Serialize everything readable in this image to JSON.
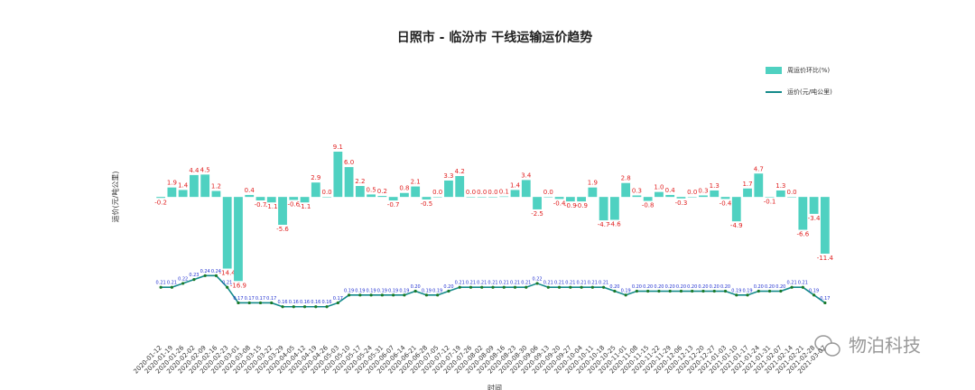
{
  "chart_data": {
    "type": "bar",
    "title": "日照市 - 临汾市 干线运输运价趋势",
    "y_label": "运价(元/吨公里)",
    "x_label": "时间",
    "watermark": "物泊科技",
    "legend": "top-right",
    "categories": [
      "2020-01-12",
      "2020-01-19",
      "2020-01-26",
      "2020-02-02",
      "2020-02-09",
      "2020-02-16",
      "2020-02-23",
      "2020-03-01",
      "2020-03-08",
      "2020-03-15",
      "2020-03-22",
      "2020-03-29",
      "2020-04-05",
      "2020-04-12",
      "2020-04-19",
      "2020-04-26",
      "2020-05-03",
      "2020-05-10",
      "2020-05-17",
      "2020-05-24",
      "2020-05-31",
      "2020-06-07",
      "2020-06-14",
      "2020-06-21",
      "2020-06-28",
      "2020-07-05",
      "2020-07-12",
      "2020-07-19",
      "2020-07-26",
      "2020-08-02",
      "2020-08-09",
      "2020-08-16",
      "2020-08-23",
      "2020-08-30",
      "2020-09-06",
      "2020-09-13",
      "2020-09-20",
      "2020-09-27",
      "2020-10-04",
      "2020-10-11",
      "2020-10-18",
      "2020-10-25",
      "2020-11-01",
      "2020-11-08",
      "2020-11-15",
      "2020-11-22",
      "2020-11-29",
      "2020-12-06",
      "2020-12-13",
      "2020-12-20",
      "2020-12-27",
      "2021-01-03",
      "2021-01-10",
      "2021-01-17",
      "2021-01-24",
      "2021-01-31",
      "2021-02-07",
      "2021-02-14",
      "2021-02-21",
      "2021-02-28",
      "2021-03-07"
    ],
    "ylim": [
      -33,
      28.7
    ],
    "y2lim": [
      0.02,
      0.81
    ],
    "series": [
      {
        "name": "周运价环比(%)",
        "type": "bar",
        "color": "#4fd1c1",
        "values": [
          -0.2,
          1.9,
          1.4,
          4.4,
          4.5,
          1.2,
          -14.4,
          -16.9,
          0.4,
          -0.7,
          -1.1,
          -5.6,
          -0.6,
          -1.1,
          2.9,
          0.0,
          9.1,
          6.0,
          2.2,
          0.5,
          0.2,
          -0.7,
          0.8,
          2.1,
          -0.5,
          0.0,
          3.3,
          4.2,
          0.0,
          0.0,
          0.0,
          0.1,
          1.4,
          3.4,
          -2.5,
          0.0,
          -0.4,
          -0.9,
          -0.9,
          1.9,
          -4.7,
          -4.6,
          2.8,
          0.3,
          -0.8,
          1.0,
          0.4,
          -0.3,
          0.0,
          0.3,
          1.3,
          -0.4,
          -4.9,
          1.7,
          4.7,
          -0.1,
          1.3,
          0.0,
          -6.6,
          -3.4,
          -11.4
        ],
        "value_labels": [
          "-0.2",
          "1.9",
          "1.4",
          "4.4",
          "4.5",
          "1.2",
          "-14.4",
          "-16.9",
          "0.4",
          "-0.7",
          "-1.1",
          "-5.6",
          "-0.6",
          "-1.1",
          "2.9",
          "0.0",
          "9.1",
          "6.0",
          "2.2",
          "0.5",
          "0.2",
          "-0.7",
          "0.8",
          "2.1",
          "-0.5",
          "0.0",
          "3.3",
          "4.2",
          "0.0",
          "0.0",
          "0.0",
          "0.1",
          "1.4",
          "3.4",
          "-2.5",
          "0.0",
          "-0.4",
          "-0.9",
          "-0.9",
          "1.9",
          "-4.7",
          "-4.6",
          "2.8",
          "0.3",
          "-0.8",
          "1.0",
          "0.4",
          "-0.3",
          "0.0",
          "0.3",
          "1.3",
          "-0.4",
          "-4.9",
          "1.7",
          "4.7",
          "-0.1",
          "1.3",
          "0.0",
          "-6.6",
          "-3.4",
          "-11.4"
        ]
      },
      {
        "name": "运价(元/吨公里)",
        "type": "line",
        "axis": "y2",
        "color": "#138a8a",
        "values": [
          0.21,
          0.21,
          0.22,
          0.23,
          0.24,
          0.24,
          0.21,
          0.17,
          0.17,
          0.17,
          0.17,
          0.16,
          0.16,
          0.16,
          0.16,
          0.16,
          0.17,
          0.19,
          0.19,
          0.19,
          0.19,
          0.19,
          0.19,
          0.2,
          0.19,
          0.19,
          0.2,
          0.21,
          0.21,
          0.21,
          0.21,
          0.21,
          0.21,
          0.21,
          0.22,
          0.21,
          0.21,
          0.21,
          0.21,
          0.21,
          0.21,
          0.2,
          0.19,
          0.2,
          0.2,
          0.2,
          0.2,
          0.2,
          0.2,
          0.2,
          0.2,
          0.2,
          0.19,
          0.19,
          0.2,
          0.2,
          0.2,
          0.21,
          0.21,
          0.19,
          0.17
        ],
        "value_labels": [
          "0.21",
          "0.21",
          "0.22",
          "0.23",
          "0.24",
          "0.24",
          "0.21",
          "0.17",
          "0.17",
          "0.17",
          "0.17",
          "0.16",
          "0.16",
          "0.16",
          "0.16",
          "0.16",
          "0.17",
          "0.19",
          "0.19",
          "0.19",
          "0.19",
          "0.19",
          "0.19",
          "0.20",
          "0.19",
          "0.19",
          "0.20",
          "0.21",
          "0.21",
          "0.21",
          "0.21",
          "0.21",
          "0.21",
          "0.21",
          "0.22",
          "0.21",
          "0.21",
          "0.21",
          "0.21",
          "0.21",
          "0.21",
          "0.20",
          "0.19",
          "0.20",
          "0.20",
          "0.20",
          "0.20",
          "0.20",
          "0.20",
          "0.20",
          "0.20",
          "0.20",
          "0.19",
          "0.19",
          "0.20",
          "0.20",
          "0.20",
          "0.21",
          "0.21",
          "0.19",
          "0.17"
        ]
      }
    ]
  }
}
